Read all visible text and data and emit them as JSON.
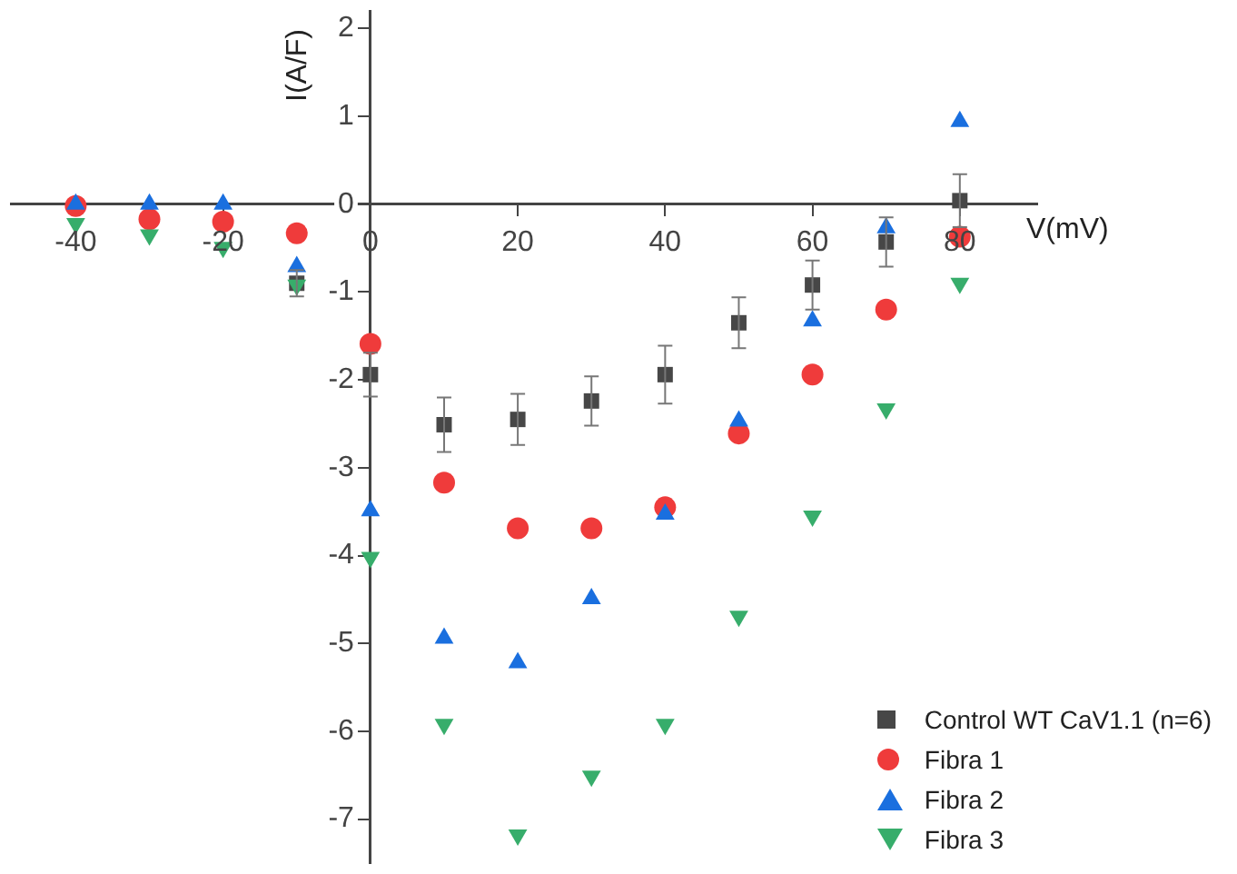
{
  "chart_data": {
    "type": "scatter",
    "xlabel": "V(mV)",
    "ylabel": "I(A/F)",
    "x": [
      -40,
      -30,
      -20,
      -10,
      0,
      10,
      20,
      30,
      40,
      50,
      60,
      70,
      80
    ],
    "xlim": [
      -48.8,
      90.5
    ],
    "ylim": [
      -7.5,
      2.2
    ],
    "xticks": [
      -40,
      -20,
      0,
      20,
      40,
      60,
      80
    ],
    "yticks": [
      -7,
      -6,
      -5,
      -4,
      -3,
      -2,
      -1,
      0,
      1,
      2
    ],
    "grid": false,
    "legend": "bottom right",
    "series": [
      {
        "name": "Control WT CaV1.1 (n=6)",
        "color": "#474747",
        "marker": "square",
        "values": [
          null,
          null,
          null,
          -0.9,
          -1.94,
          -2.51,
          -2.45,
          -2.24,
          -1.94,
          -1.35,
          -0.92,
          -0.43,
          0.04
        ],
        "errors": [
          null,
          null,
          null,
          0.15,
          0.25,
          0.31,
          0.29,
          0.28,
          0.33,
          0.29,
          0.28,
          0.28,
          0.3
        ]
      },
      {
        "name": "Fibra 1",
        "color": "#ef3b3b",
        "marker": "circle",
        "values": [
          -0.02,
          -0.17,
          -0.2,
          -0.33,
          -1.59,
          -3.17,
          -3.69,
          -3.69,
          -3.45,
          -2.61,
          -1.94,
          -1.2,
          -0.37
        ]
      },
      {
        "name": "Fibra 2",
        "color": "#1a6fdf",
        "marker": "triangle",
        "values": [
          0,
          0,
          0,
          -0.71,
          -3.49,
          -4.94,
          -5.22,
          -4.49,
          -3.53,
          -2.47,
          -1.33,
          -0.27,
          0.94
        ]
      },
      {
        "name": "Fibra 3",
        "color": "#37ad6b",
        "marker": "triangle-down",
        "values": [
          -0.22,
          -0.35,
          -0.49,
          -0.92,
          -4.02,
          -5.92,
          -7.18,
          -6.51,
          -5.92,
          -4.69,
          -3.55,
          -2.33,
          -0.9
        ]
      }
    ]
  }
}
